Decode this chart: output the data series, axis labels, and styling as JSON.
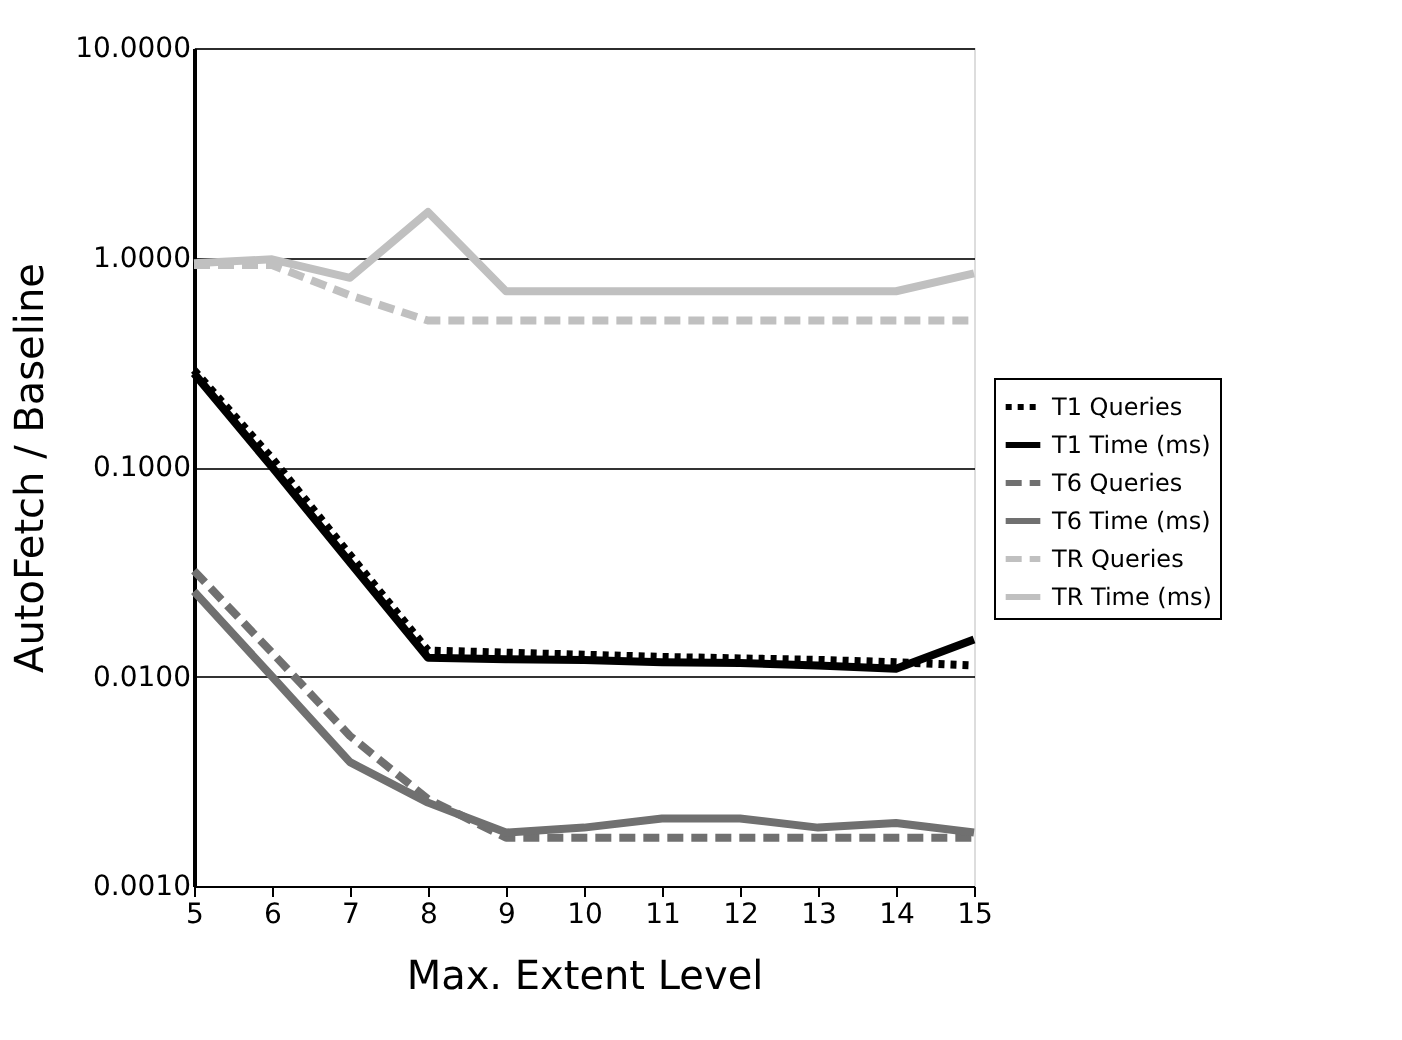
{
  "chart_data": {
    "type": "line",
    "xlabel": "Max. Extent Level",
    "ylabel": "AutoFetch / Baseline",
    "x": [
      5,
      6,
      7,
      8,
      9,
      10,
      11,
      12,
      13,
      14,
      15
    ],
    "series": [
      {
        "name": "T1 Queries",
        "color": "#000000",
        "line_style": "dotted",
        "values": [
          0.29,
          0.11,
          0.038,
          0.0133,
          0.013,
          0.0127,
          0.0124,
          0.0122,
          0.012,
          0.0117,
          0.0113
        ]
      },
      {
        "name": "T1 Time (ms)",
        "color": "#000000",
        "line_style": "solid",
        "values": [
          0.28,
          0.1,
          0.035,
          0.0123,
          0.0121,
          0.012,
          0.0117,
          0.0116,
          0.0113,
          0.0109,
          0.015
        ]
      },
      {
        "name": "T6 Queries",
        "color": "#707070",
        "line_style": "dashed",
        "values": [
          0.032,
          0.013,
          0.0052,
          0.0026,
          0.0017,
          0.0017,
          0.0017,
          0.0017,
          0.0017,
          0.0017,
          0.0017
        ]
      },
      {
        "name": "T6 Time (ms)",
        "color": "#707070",
        "line_style": "solid",
        "values": [
          0.0255,
          0.01,
          0.0039,
          0.0025,
          0.0018,
          0.0019,
          0.0021,
          0.0021,
          0.0019,
          0.002,
          0.0018
        ]
      },
      {
        "name": "TR Queries",
        "color": "#c0c0c0",
        "line_style": "dashed",
        "values": [
          0.92,
          0.92,
          0.66,
          0.5,
          0.5,
          0.5,
          0.5,
          0.5,
          0.5,
          0.5,
          0.5
        ]
      },
      {
        "name": "TR Time (ms)",
        "color": "#c0c0c0",
        "line_style": "solid",
        "values": [
          0.94,
          0.98,
          0.8,
          1.65,
          0.69,
          0.69,
          0.69,
          0.69,
          0.69,
          0.69,
          0.84
        ]
      }
    ],
    "log": "y",
    "xlim": [
      5,
      15
    ],
    "xticks": [
      5,
      6,
      7,
      8,
      9,
      10,
      11,
      12,
      13,
      14,
      15
    ],
    "ylim": [
      0.001,
      10
    ],
    "yticks": [
      {
        "value": 0.001,
        "label": "0.0010"
      },
      {
        "value": 0.01,
        "label": "0.0100"
      },
      {
        "value": 0.1,
        "label": "0.1000"
      },
      {
        "value": 1,
        "label": "1.0000"
      },
      {
        "value": 10,
        "label": "10.0000"
      }
    ],
    "grid": "y",
    "legend": "right",
    "marker": "none"
  }
}
